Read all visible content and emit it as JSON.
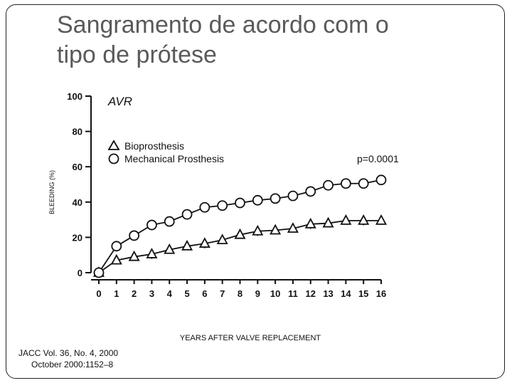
{
  "slide": {
    "title_line1": "Sangramento de acordo com o",
    "title_line2": "tipo de prótese"
  },
  "citation": {
    "line1": "JACC Vol. 36, No. 4, 2000",
    "line2": "October 2000:1152–8"
  },
  "chart_data": {
    "type": "line",
    "title": "AVR",
    "xlabel": "YEARS AFTER VALVE REPLACEMENT",
    "ylabel": "BLEEDING (%)",
    "xlim": [
      0,
      16
    ],
    "ylim": [
      0,
      100
    ],
    "x_ticks": [
      0,
      1,
      2,
      3,
      4,
      5,
      6,
      7,
      8,
      9,
      10,
      11,
      12,
      13,
      14,
      15,
      16
    ],
    "y_ticks": [
      0,
      20,
      40,
      60,
      80,
      100
    ],
    "grid": false,
    "legend_position": "top-left",
    "annotation": "p=0.0001",
    "series": [
      {
        "name": "Bioprosthesis",
        "marker": "triangle",
        "x": [
          0,
          1,
          2,
          3,
          4,
          5,
          6,
          7,
          8,
          9,
          10,
          11,
          12,
          13,
          14,
          15,
          16
        ],
        "y": [
          0,
          7,
          9,
          10.5,
          13,
          15,
          16.5,
          18.5,
          21.5,
          23.5,
          24,
          25,
          27.5,
          28,
          29.5,
          29.5,
          29.5
        ]
      },
      {
        "name": "Mechanical Prosthesis",
        "marker": "circle",
        "x": [
          0,
          1,
          2,
          3,
          4,
          5,
          6,
          7,
          8,
          9,
          10,
          11,
          12,
          13,
          14,
          15,
          16
        ],
        "y": [
          0,
          15,
          21,
          27,
          29,
          33,
          37,
          38,
          39.5,
          41,
          42,
          43.5,
          46,
          49.5,
          50.5,
          50.5,
          52.5
        ]
      }
    ]
  }
}
